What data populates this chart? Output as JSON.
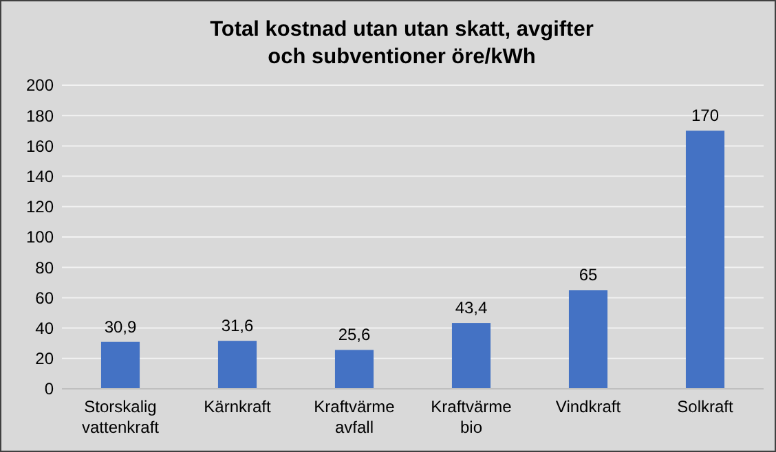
{
  "chart_data": {
    "type": "bar",
    "title": "Total kostnad utan utan skatt, avgifter och subventioner öre/kWh",
    "categories": [
      "Storskalig vattenkraft",
      "Kärnkraft",
      "Kraftvärme avfall",
      "Kraftvärme bio",
      "Vindkraft",
      "Solkraft"
    ],
    "values": [
      30.9,
      31.6,
      25.6,
      43.4,
      65,
      170
    ],
    "color": "#4472c4",
    "ylim": [
      0,
      200
    ],
    "yticks": [
      0,
      20,
      40,
      60,
      80,
      100,
      120,
      140,
      160,
      180,
      200
    ],
    "grid": "y",
    "value_labels": [
      "30,9",
      "31,6",
      "25,6",
      "43,4",
      "65",
      "170"
    ]
  }
}
